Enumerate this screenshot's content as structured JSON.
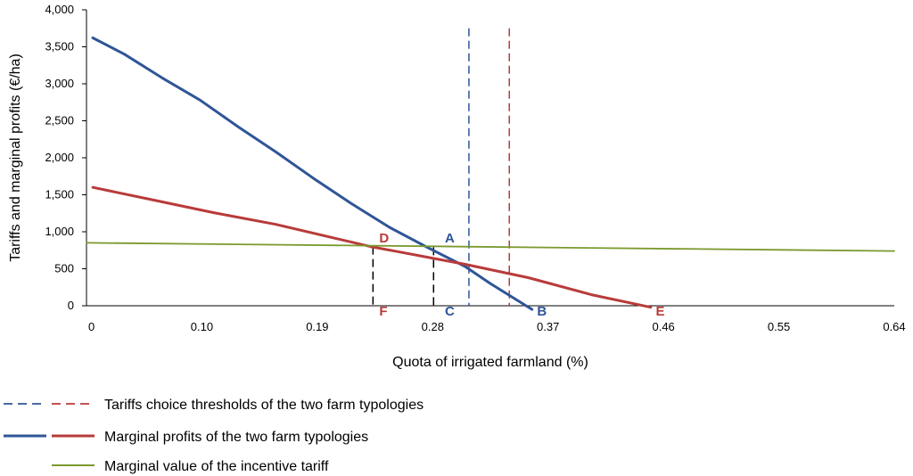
{
  "chart_data": {
    "type": "line",
    "xlabel": "Quota of irrigated farmland (%)",
    "ylabel": "Tariffs and marginal profits (€/ha)",
    "xlim": [
      0,
      0.64
    ],
    "ylim": [
      0,
      4000
    ],
    "x_ticks": [
      "0",
      "0.10",
      "0.19",
      "0.28",
      "0.37",
      "0.46",
      "0.55",
      "0.64"
    ],
    "y_ticks": [
      "0",
      "500",
      "1,000",
      "1,500",
      "2,000",
      "2,500",
      "3,000",
      "3,500",
      "4,000"
    ],
    "grid": false,
    "colors": {
      "blue": "#2e5597",
      "red": "#b83b3a",
      "green": "#7a9a2e"
    },
    "series": [
      {
        "color": "#2e5597",
        "style": "solid",
        "points": [
          [
            0.005,
            3620
          ],
          [
            0.03,
            3400
          ],
          [
            0.06,
            3080
          ],
          [
            0.09,
            2780
          ],
          [
            0.12,
            2420
          ],
          [
            0.15,
            2080
          ],
          [
            0.18,
            1720
          ],
          [
            0.21,
            1380
          ],
          [
            0.24,
            1060
          ],
          [
            0.27,
            790
          ],
          [
            0.3,
            530
          ],
          [
            0.32,
            300
          ],
          [
            0.353,
            -50
          ]
        ]
      },
      {
        "color": "#b83b3a",
        "style": "solid",
        "points": [
          [
            0.005,
            1600
          ],
          [
            0.05,
            1440
          ],
          [
            0.1,
            1260
          ],
          [
            0.15,
            1100
          ],
          [
            0.2,
            900
          ],
          [
            0.225,
            800
          ],
          [
            0.25,
            720
          ],
          [
            0.275,
            640
          ],
          [
            0.3,
            560
          ],
          [
            0.35,
            380
          ],
          [
            0.4,
            150
          ],
          [
            0.447,
            -20
          ]
        ]
      },
      {
        "color": "#7a9a2e",
        "style": "solid",
        "points": [
          [
            0,
            850
          ],
          [
            0.64,
            740
          ]
        ]
      }
    ],
    "thresholds": [
      {
        "color": "#2e5597",
        "x": 0.303,
        "y_top": 3750
      },
      {
        "color": "#b83b3a",
        "x": 0.335,
        "y_top": 3750
      }
    ],
    "drop_lines": [
      {
        "x": 0.227,
        "y": 800
      },
      {
        "x": 0.275,
        "y": 790
      }
    ],
    "annotations": [
      {
        "text": "A",
        "x": 0.284,
        "y": 930,
        "color": "#2e5597"
      },
      {
        "text": "B",
        "x": 0.357,
        "y": -60,
        "color": "#2e5597"
      },
      {
        "text": "C",
        "x": 0.284,
        "y": -60,
        "color": "#2e5597"
      },
      {
        "text": "D",
        "x": 0.232,
        "y": 930,
        "color": "#b83b3a"
      },
      {
        "text": "E",
        "x": 0.451,
        "y": -60,
        "color": "#b83b3a"
      },
      {
        "text": "F",
        "x": 0.232,
        "y": -60,
        "color": "#b83b3a"
      }
    ],
    "legend": {
      "placement": "bottom",
      "entries": [
        {
          "text": "Tariffs choice thresholds of the two farm typologies",
          "colors": [
            "#2e5597",
            "#b83b3a"
          ],
          "style": "dashed"
        },
        {
          "text": "Marginal profits of the two farm typologies",
          "colors": [
            "#2e5597",
            "#b83b3a"
          ],
          "style": "solid"
        },
        {
          "text": "Marginal value of the incentive tariff",
          "colors": [
            "#7a9a2e"
          ],
          "style": "solid"
        }
      ]
    }
  }
}
